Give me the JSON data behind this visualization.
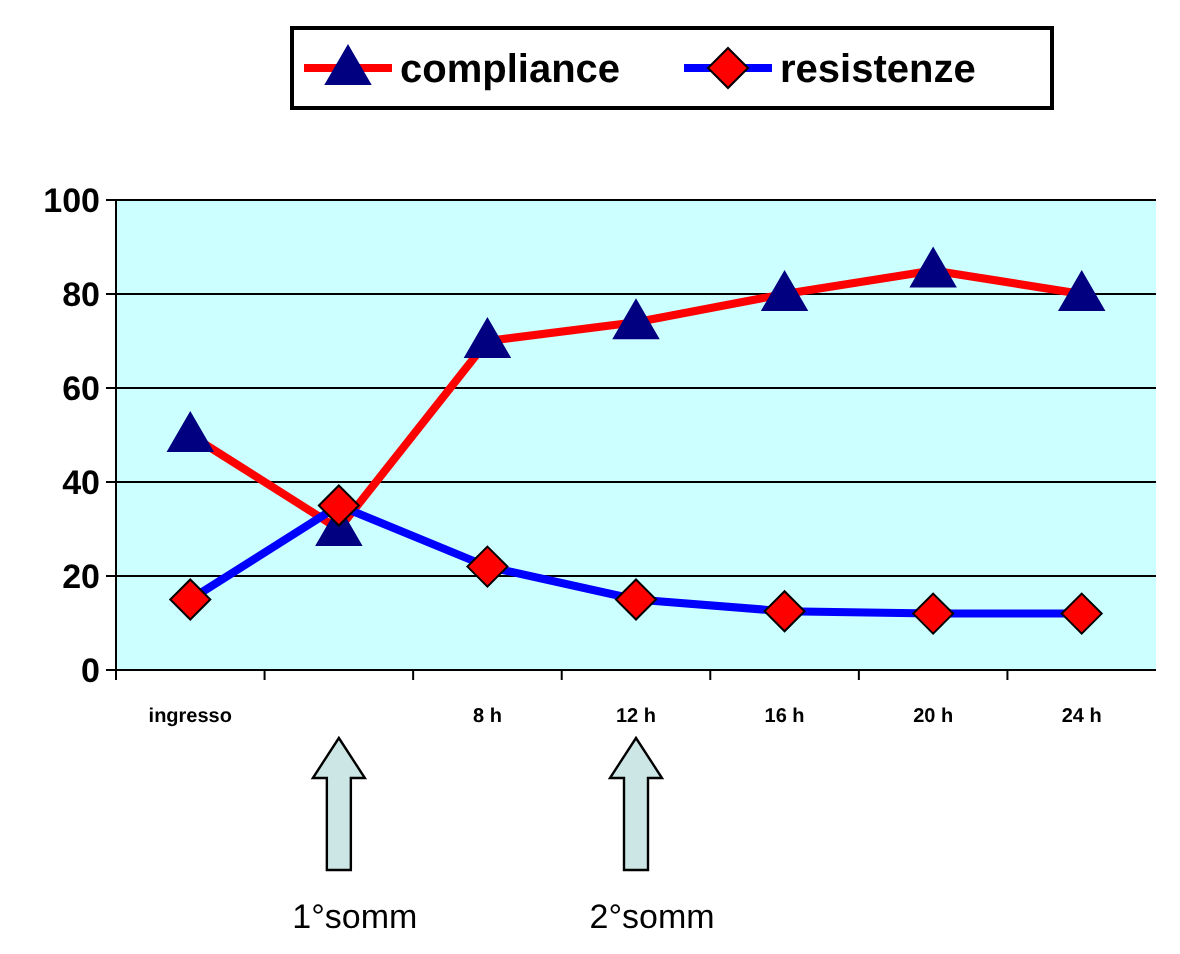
{
  "chart_data": {
    "type": "line",
    "categories": [
      "ingresso",
      null,
      "8 h",
      "12 h",
      "16 h",
      "20 h",
      "24 h"
    ],
    "series": [
      {
        "name": "compliance",
        "color": "#ff0000",
        "marker": "triangle",
        "values": [
          50,
          30,
          70,
          74,
          80,
          85,
          80
        ]
      },
      {
        "name": "resistenze",
        "color": "#0000ff",
        "marker": "diamond",
        "values": [
          15,
          35,
          22,
          15,
          12.5,
          12,
          12
        ]
      }
    ],
    "ylim": [
      0,
      100
    ],
    "yticks": [
      0,
      20,
      40,
      60,
      80,
      100
    ],
    "grid": "y",
    "legend": "top",
    "annotations": [
      "1°somm",
      "2°somm"
    ]
  }
}
